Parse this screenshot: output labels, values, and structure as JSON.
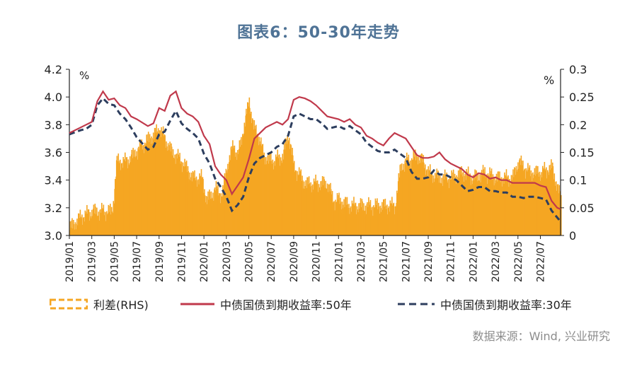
{
  "chart_title": "图表6：50-30年走势",
  "source": "数据来源：Wind, 兴业研究",
  "colors": {
    "spread": "#f5a623",
    "y50": "#c0394b",
    "y30": "#2d3e5e",
    "title": "#4f7396"
  },
  "chart_data": {
    "type": "line",
    "x_ticks": [
      "2019/01",
      "2019/03",
      "2019/05",
      "2019/07",
      "2019/09",
      "2019/11",
      "2020/01",
      "2020/03",
      "2020/05",
      "2020/07",
      "2020/09",
      "2020/11",
      "2021/01",
      "2021/03",
      "2021/05",
      "2021/07",
      "2021/09",
      "2021/11",
      "2022/01",
      "2022/03",
      "2022/05",
      "2022/07"
    ],
    "x_tick_months": [
      0,
      2,
      4,
      6,
      8,
      10,
      12,
      14,
      16,
      18,
      20,
      22,
      24,
      26,
      28,
      30,
      32,
      34,
      36,
      38,
      40,
      42
    ],
    "xlim_months": [
      0,
      43.8
    ],
    "y_left": {
      "label": "%",
      "lim": [
        3.0,
        4.2
      ],
      "ticks": [
        "3.0",
        "3.2",
        "3.4",
        "3.6",
        "3.8",
        "4.0",
        "4.2"
      ]
    },
    "y_right": {
      "label": "%",
      "lim": [
        0,
        0.3
      ],
      "ticks": [
        "0",
        "0.05",
        "0.1",
        "0.15",
        "0.2",
        "0.25",
        "0.3"
      ]
    },
    "series": [
      {
        "name": "利差(RHS)",
        "axis": "right",
        "kind": "bar",
        "x_months": [
          0,
          1,
          2,
          3,
          3.8,
          4.2,
          5,
          5.6,
          6,
          7,
          7.6,
          8,
          8.5,
          9,
          10,
          11,
          11.8,
          12.2,
          13,
          13.6,
          14,
          14.6,
          15,
          15.6,
          16,
          16.4,
          16.8,
          17.3,
          18,
          19,
          19.5,
          20,
          21,
          22,
          23,
          23.5,
          24,
          25,
          26,
          27,
          28,
          29,
          29.5,
          30,
          31,
          31.5,
          32,
          33,
          34,
          35,
          36,
          37,
          38,
          39,
          39.5,
          40,
          41,
          42,
          43,
          43.8
        ],
        "values": [
          0.01,
          0.03,
          0.04,
          0.04,
          0.04,
          0.13,
          0.13,
          0.14,
          0.15,
          0.17,
          0.18,
          0.19,
          0.17,
          0.15,
          0.13,
          0.1,
          0.1,
          0.06,
          0.08,
          0.07,
          0.12,
          0.16,
          0.14,
          0.2,
          0.24,
          0.19,
          0.18,
          0.14,
          0.13,
          0.14,
          0.18,
          0.12,
          0.09,
          0.09,
          0.09,
          0.06,
          0.06,
          0.05,
          0.05,
          0.05,
          0.05,
          0.05,
          0.12,
          0.13,
          0.14,
          0.13,
          0.11,
          0.1,
          0.1,
          0.11,
          0.1,
          0.11,
          0.1,
          0.1,
          0.1,
          0.13,
          0.11,
          0.11,
          0.12,
          0.06
        ]
      },
      {
        "name": "中债国债到期收益率:50年",
        "axis": "left",
        "kind": "solid",
        "x_months": [
          0,
          1,
          1.5,
          2,
          2.5,
          3,
          3.5,
          4,
          4.5,
          5,
          5.5,
          6,
          7,
          7.5,
          8,
          8.5,
          9,
          9.5,
          10,
          10.5,
          11,
          11.5,
          12,
          12.5,
          13,
          13.5,
          14,
          14.5,
          15,
          15.5,
          16,
          16.5,
          17,
          17.5,
          18,
          18.5,
          19,
          19.5,
          20,
          20.5,
          21,
          21.5,
          22,
          22.5,
          23,
          24,
          24.5,
          25,
          25.5,
          26,
          26.5,
          27,
          27.5,
          28,
          28.5,
          29,
          29.5,
          30,
          30.5,
          31,
          31.5,
          32,
          32.5,
          33,
          33.5,
          34,
          34.5,
          35,
          35.5,
          36,
          36.5,
          37,
          37.5,
          38,
          38.5,
          39,
          39.5,
          40,
          40.5,
          41,
          41.5,
          42,
          42.5,
          43,
          43.5,
          43.8
        ],
        "values": [
          3.74,
          3.78,
          3.8,
          3.82,
          3.97,
          4.04,
          3.98,
          3.99,
          3.94,
          3.92,
          3.86,
          3.84,
          3.79,
          3.81,
          3.92,
          3.9,
          4.01,
          4.04,
          3.92,
          3.88,
          3.86,
          3.82,
          3.72,
          3.66,
          3.5,
          3.44,
          3.4,
          3.3,
          3.36,
          3.42,
          3.55,
          3.7,
          3.74,
          3.78,
          3.8,
          3.82,
          3.8,
          3.84,
          3.98,
          4.0,
          3.99,
          3.97,
          3.94,
          3.9,
          3.86,
          3.84,
          3.82,
          3.84,
          3.8,
          3.78,
          3.72,
          3.7,
          3.67,
          3.65,
          3.7,
          3.74,
          3.72,
          3.7,
          3.64,
          3.58,
          3.56,
          3.56,
          3.57,
          3.6,
          3.55,
          3.52,
          3.5,
          3.48,
          3.44,
          3.42,
          3.45,
          3.44,
          3.41,
          3.42,
          3.4,
          3.4,
          3.38,
          3.38,
          3.38,
          3.38,
          3.38,
          3.36,
          3.35,
          3.25,
          3.2,
          3.19
        ]
      },
      {
        "name": "中债国债到期收益率:30年",
        "axis": "left",
        "kind": "dashed",
        "x_months": [
          0,
          1,
          1.5,
          2,
          2.5,
          3,
          3.5,
          4,
          4.5,
          5,
          5.5,
          6,
          7,
          7.5,
          8,
          8.5,
          9,
          9.5,
          10,
          10.5,
          11,
          11.5,
          12,
          12.5,
          13,
          13.5,
          14,
          14.5,
          15,
          15.5,
          16,
          16.5,
          17,
          17.5,
          18,
          18.5,
          19,
          19.5,
          20,
          20.5,
          21,
          21.5,
          22,
          22.5,
          23,
          24,
          24.5,
          25,
          25.5,
          26,
          26.5,
          27,
          27.5,
          28,
          28.5,
          29,
          29.5,
          30,
          30.5,
          31,
          31.5,
          32,
          32.5,
          33,
          33.5,
          34,
          34.5,
          35,
          35.5,
          36,
          36.5,
          37,
          37.5,
          38,
          38.5,
          39,
          39.5,
          40,
          40.5,
          41,
          41.5,
          42,
          42.5,
          43,
          43.5,
          43.8
        ],
        "values": [
          3.73,
          3.76,
          3.77,
          3.8,
          3.94,
          3.99,
          3.95,
          3.94,
          3.88,
          3.84,
          3.78,
          3.71,
          3.62,
          3.64,
          3.73,
          3.75,
          3.83,
          3.9,
          3.81,
          3.77,
          3.74,
          3.7,
          3.59,
          3.52,
          3.41,
          3.35,
          3.28,
          3.18,
          3.22,
          3.28,
          3.42,
          3.52,
          3.56,
          3.58,
          3.6,
          3.64,
          3.66,
          3.72,
          3.86,
          3.88,
          3.86,
          3.84,
          3.84,
          3.81,
          3.77,
          3.79,
          3.77,
          3.79,
          3.76,
          3.73,
          3.67,
          3.64,
          3.61,
          3.6,
          3.6,
          3.62,
          3.59,
          3.56,
          3.46,
          3.41,
          3.41,
          3.42,
          3.47,
          3.44,
          3.44,
          3.42,
          3.4,
          3.36,
          3.32,
          3.33,
          3.35,
          3.35,
          3.32,
          3.32,
          3.31,
          3.31,
          3.28,
          3.28,
          3.27,
          3.28,
          3.28,
          3.27,
          3.26,
          3.18,
          3.13,
          3.1
        ]
      }
    ]
  }
}
